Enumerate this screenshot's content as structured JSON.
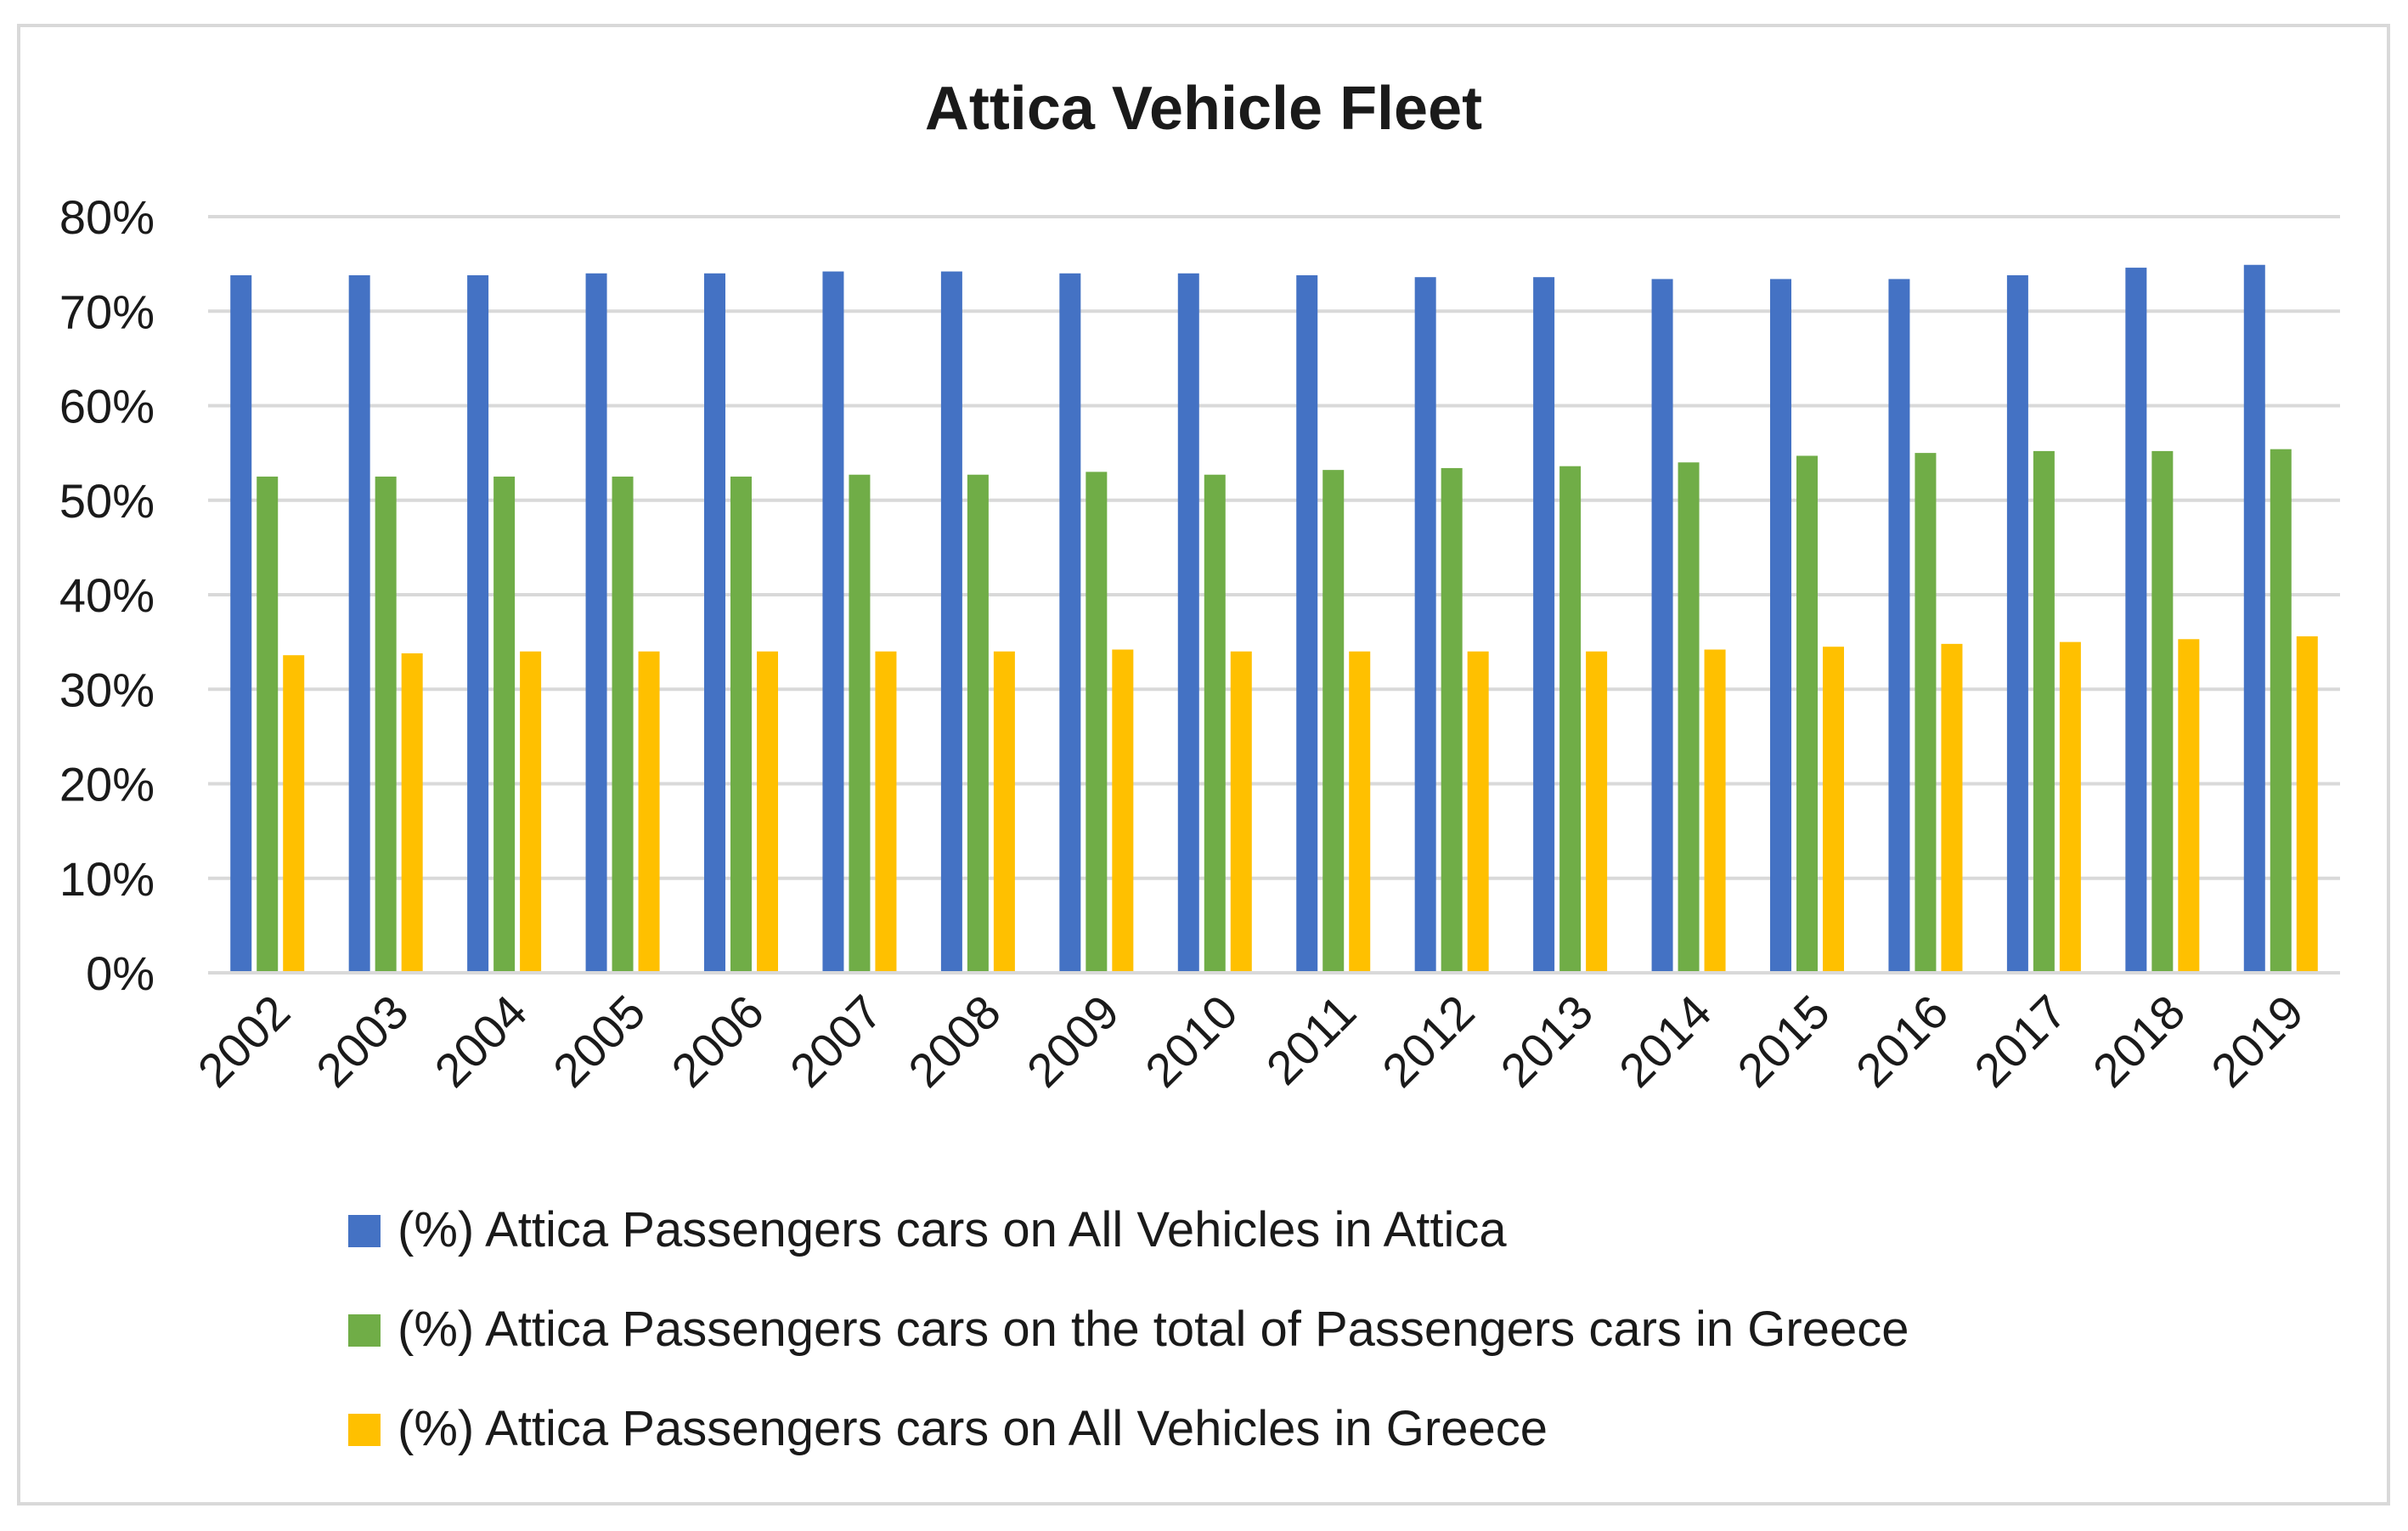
{
  "chart_data": {
    "type": "bar",
    "title": "Attica Vehicle Fleet",
    "xlabel": "",
    "ylabel": "",
    "ylim": [
      0,
      80
    ],
    "y_ticks": [
      "0%",
      "10%",
      "20%",
      "30%",
      "40%",
      "50%",
      "60%",
      "70%",
      "80%"
    ],
    "y_tick_values": [
      0,
      10,
      20,
      30,
      40,
      50,
      60,
      70,
      80
    ],
    "grid": true,
    "legend_position": "bottom",
    "categories": [
      "2002",
      "2003",
      "2004",
      "2005",
      "2006",
      "2007",
      "2008",
      "2009",
      "2010",
      "2011",
      "2012",
      "2013",
      "2014",
      "2015",
      "2016",
      "2017",
      "2018",
      "2019"
    ],
    "series": [
      {
        "name": "(%) Attica Passengers cars on All Vehicles in Attica",
        "color": "#4472C4",
        "values": [
          73.8,
          73.8,
          73.8,
          74.0,
          74.0,
          74.2,
          74.2,
          74.0,
          74.0,
          73.8,
          73.6,
          73.6,
          73.4,
          73.4,
          73.4,
          73.8,
          74.6,
          74.9
        ]
      },
      {
        "name": "(%) Attica Passengers cars on the total of Passengers cars in Greece",
        "color": "#70AD47",
        "values": [
          52.5,
          52.5,
          52.5,
          52.5,
          52.5,
          52.7,
          52.7,
          53.0,
          52.7,
          53.2,
          53.4,
          53.6,
          54.0,
          54.7,
          55.0,
          55.2,
          55.2,
          55.4
        ]
      },
      {
        "name": "(%) Attica Passengers cars on All Vehicles in Greece",
        "color": "#FFC000",
        "values": [
          33.6,
          33.8,
          34.0,
          34.0,
          34.0,
          34.0,
          34.0,
          34.2,
          34.0,
          34.0,
          34.0,
          34.0,
          34.2,
          34.5,
          34.8,
          35.0,
          35.3,
          35.6
        ]
      }
    ]
  }
}
